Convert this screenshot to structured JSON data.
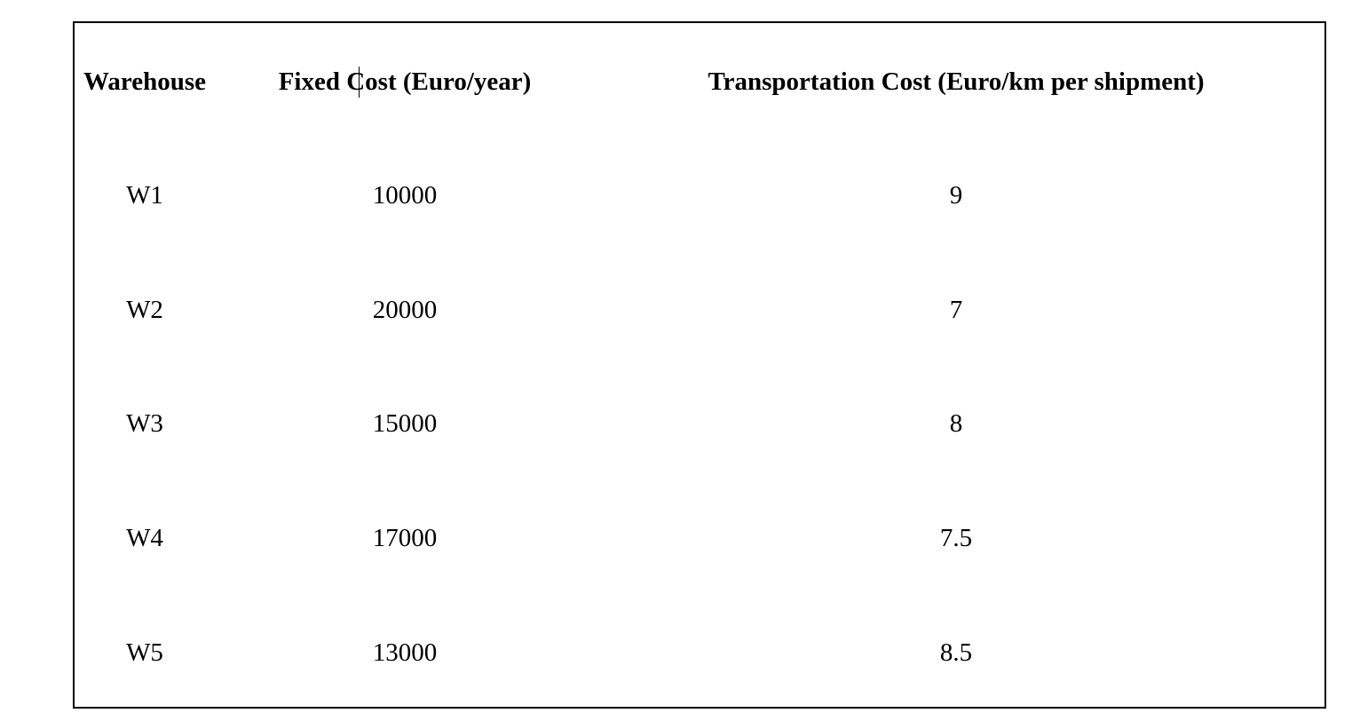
{
  "table": {
    "headers": {
      "warehouse": "Warehouse",
      "fixed_cost": "Fixed Cost (Euro/year)",
      "transport_cost": "Transportation Cost (Euro/km per shipment)"
    },
    "rows": [
      {
        "warehouse": "W1",
        "fixed_cost": "10000",
        "transport_cost": "9"
      },
      {
        "warehouse": "W2",
        "fixed_cost": "20000",
        "transport_cost": "7"
      },
      {
        "warehouse": "W3",
        "fixed_cost": "15000",
        "transport_cost": "8"
      },
      {
        "warehouse": "W4",
        "fixed_cost": "17000",
        "transport_cost": "7.5"
      },
      {
        "warehouse": "W5",
        "fixed_cost": "13000",
        "transport_cost": "8.5"
      }
    ]
  }
}
